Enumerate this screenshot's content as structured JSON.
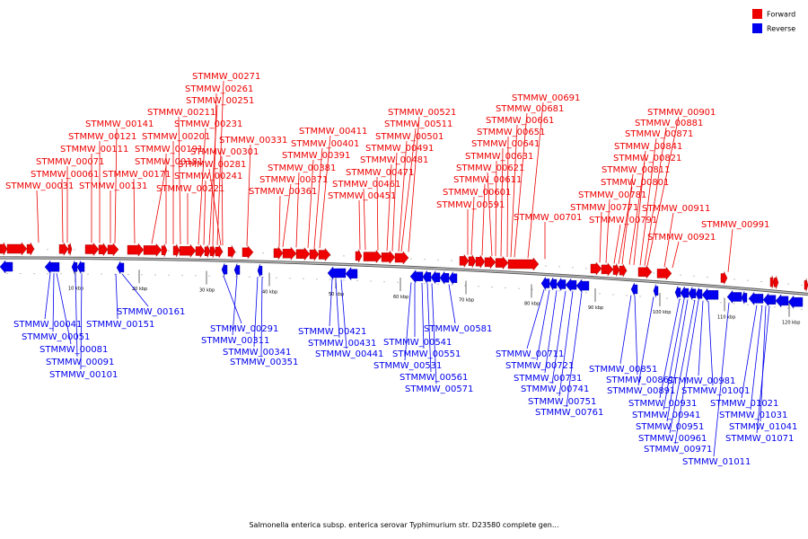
{
  "colors": {
    "forward": "#ee0000",
    "reverse": "#0000ee",
    "backbone": "#888888"
  },
  "legend": {
    "forward": "Forward",
    "reverse": "Reverse"
  },
  "caption": "Salmonella enterica subsp. enterica serovar Typhimurium str. D23580 complete gen...",
  "ticks": [
    "10 kbp",
    "20 kbp",
    "30 kbp",
    "40 kbp",
    "50 kbp",
    "60 kbp",
    "70 kbp",
    "80 kbp",
    "90 kbp",
    "100 kbp",
    "110 kbp",
    "120 kbp"
  ],
  "forward_labels": [
    "STMMW_00031",
    "STMMW_00061",
    "STMMW_00071",
    "STMMW_00111",
    "STMMW_00121",
    "STMMW_00131",
    "STMMW_00141",
    "STMMW_00171",
    "STMMW_00181",
    "STMMW_00191",
    "STMMW_00201",
    "STMMW_00211",
    "STMMW_00221",
    "STMMW_00231",
    "STMMW_00241",
    "STMMW_00251",
    "STMMW_00261",
    "STMMW_00271",
    "STMMW_00281",
    "STMMW_00301",
    "STMMW_00331",
    "STMMW_00361",
    "STMMW_00371",
    "STMMW_00381",
    "STMMW_00391",
    "STMMW_00401",
    "STMMW_00411",
    "STMMW_00451",
    "STMMW_00461",
    "STMMW_00471",
    "STMMW_00481",
    "STMMW_00491",
    "STMMW_00501",
    "STMMW_00511",
    "STMMW_00521",
    "STMMW_00591",
    "STMMW_00601",
    "STMMW_00611",
    "STMMW_00621",
    "STMMW_00631",
    "STMMW_00641",
    "STMMW_00651",
    "STMMW_00661",
    "STMMW_00681",
    "STMMW_00691",
    "STMMW_00701",
    "STMMW_00771",
    "STMMW_00781",
    "STMMW_00791",
    "STMMW_00801",
    "STMMW_00811",
    "STMMW_00821",
    "STMMW_00841",
    "STMMW_00871",
    "STMMW_00881",
    "STMMW_00901",
    "STMMW_00911",
    "STMMW_00921",
    "STMMW_00991"
  ],
  "reverse_labels": [
    "STMMW_00041",
    "STMMW_00051",
    "STMMW_00081",
    "STMMW_00091",
    "STMMW_00101",
    "STMMW_00151",
    "STMMW_00161",
    "STMMW_00291",
    "STMMW_00311",
    "STMMW_00341",
    "STMMW_00351",
    "STMMW_00421",
    "STMMW_00431",
    "STMMW_00441",
    "STMMW_00531",
    "STMMW_00541",
    "STMMW_00551",
    "STMMW_00561",
    "STMMW_00571",
    "STMMW_00581",
    "STMMW_00711",
    "STMMW_00721",
    "STMMW_00731",
    "STMMW_00741",
    "STMMW_00751",
    "STMMW_00761",
    "STMMW_00851",
    "STMMW_00861",
    "STMMW_00891",
    "STMMW_00931",
    "STMMW_00941",
    "STMMW_00951",
    "STMMW_00961",
    "STMMW_00971",
    "STMMW_00981",
    "STMMW_01001",
    "STMMW_01011",
    "STMMW_01021",
    "STMMW_01031",
    "STMMW_01041",
    "STMMW_01071"
  ]
}
